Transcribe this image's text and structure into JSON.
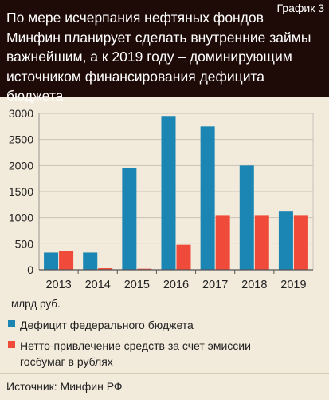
{
  "header": {
    "title": "По мере исчерпания нефтяных фондов\nМинфин планирует сделать внутренние займы\nважнейшим, а к 2019 году – доминирующим\nисточником финансирования дефицита бюджета",
    "label": "График 3"
  },
  "chart_data": {
    "type": "bar",
    "categories": [
      "2013",
      "2014",
      "2015",
      "2016",
      "2017",
      "2018",
      "2019"
    ],
    "series": [
      {
        "name": "Дефицит федерального бюджета",
        "color": "#1b86b4",
        "values": [
          330,
          330,
          1950,
          2950,
          2750,
          2000,
          1130
        ]
      },
      {
        "name": "Нетто-привлечение средств за счет эмиссии госбумаг в рублях",
        "color": "#f04a3a",
        "values": [
          360,
          30,
          20,
          480,
          1050,
          1050,
          1050
        ]
      }
    ],
    "ylim": [
      0,
      3000
    ],
    "yticks": [
      0,
      500,
      1000,
      1500,
      2000,
      2500,
      3000
    ],
    "ylabel": "млрд руб.",
    "grid": true
  },
  "legend": {
    "item1": "Дефицит федерального бюджета",
    "item2_line1": "Нетто-привлечение средств за счет эмиссии",
    "item2_line2": "госбумаг в рублях"
  },
  "source": "Источник: Минфин РФ"
}
